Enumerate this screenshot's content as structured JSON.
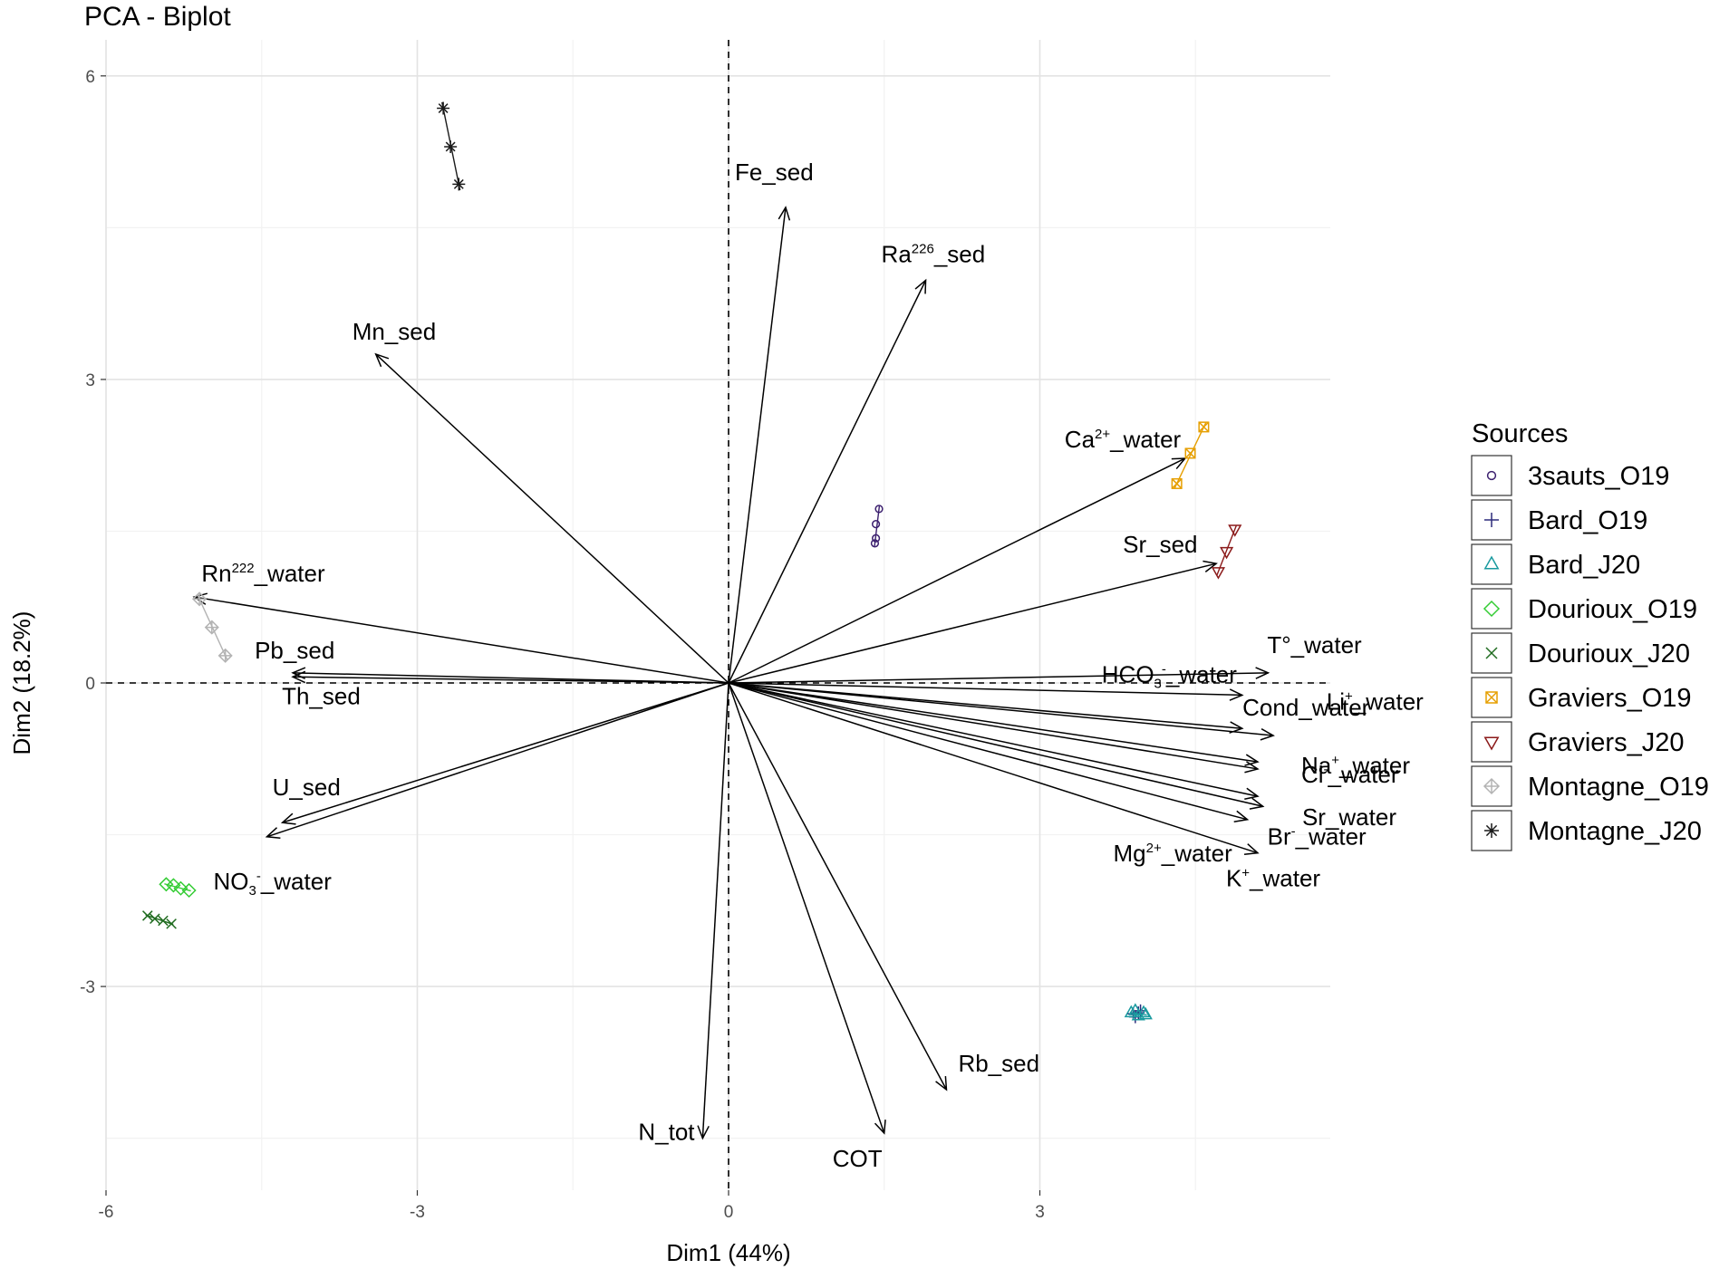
{
  "chart_data": {
    "type": "scatter",
    "title": "PCA - Biplot",
    "xlabel": "Dim1 (44%)",
    "ylabel": "Dim2 (18.2%)",
    "xlim": [
      -6.2,
      5.8
    ],
    "ylim": [
      -4.6,
      6.2
    ],
    "x_ticks": [
      -6,
      -3,
      0,
      3
    ],
    "y_ticks": [
      6,
      3,
      0,
      -3
    ],
    "x_tick_labels": [
      "-6",
      "-3",
      "0",
      "3"
    ],
    "y_tick_labels": [
      "6",
      "3",
      "0",
      "-3"
    ],
    "grid": true,
    "legend_title": "Sources",
    "legend_position": "right",
    "variables": [
      {
        "name": "Fe_sed",
        "x": 0.55,
        "y": 4.7,
        "label_parts": [
          {
            "t": "Fe_sed"
          }
        ]
      },
      {
        "name": "Ra226_sed",
        "x": 1.9,
        "y": 3.98,
        "label_parts": [
          {
            "t": "Ra"
          },
          {
            "t": "226",
            "sup": true
          },
          {
            "t": "_sed"
          }
        ]
      },
      {
        "name": "Mn_sed",
        "x": -3.4,
        "y": 3.25,
        "label_parts": [
          {
            "t": "Mn_sed"
          }
        ]
      },
      {
        "name": "Ca2+_water",
        "x": 4.4,
        "y": 2.22,
        "label_parts": [
          {
            "t": "Ca"
          },
          {
            "t": "2+",
            "sup": true
          },
          {
            "t": "_water"
          }
        ]
      },
      {
        "name": "Sr_sed",
        "x": 4.7,
        "y": 1.18,
        "label_parts": [
          {
            "t": "Sr_sed"
          }
        ]
      },
      {
        "name": "Rn222_water",
        "x": -5.15,
        "y": 0.85,
        "label_parts": [
          {
            "t": "Rn"
          },
          {
            "t": "222",
            "sup": true
          },
          {
            "t": "_water"
          }
        ]
      },
      {
        "name": "Pb_sed",
        "x": -4.2,
        "y": 0.1,
        "label_parts": [
          {
            "t": "Pb_sed"
          }
        ]
      },
      {
        "name": "Th_sed",
        "x": -4.2,
        "y": 0.06,
        "label_parts": [
          {
            "t": "Th_sed"
          }
        ]
      },
      {
        "name": "T°_water",
        "x": 5.2,
        "y": 0.1,
        "label_parts": [
          {
            "t": "T°_water"
          }
        ]
      },
      {
        "name": "HCO3-_water",
        "x": 4.95,
        "y": -0.12,
        "label_parts": [
          {
            "t": "HCO"
          },
          {
            "t": "3",
            "sub": true
          },
          {
            "t": "-",
            "sup": true
          },
          {
            "t": "_water"
          }
        ]
      },
      {
        "name": "Li+_water",
        "x": 4.95,
        "y": -0.45,
        "label_parts": [
          {
            "t": "Li"
          },
          {
            "t": "+",
            "sup": true
          },
          {
            "t": "_water"
          }
        ]
      },
      {
        "name": "Cond_water",
        "x": 5.25,
        "y": -0.52,
        "label_parts": [
          {
            "t": "Cond_water"
          }
        ]
      },
      {
        "name": "Na+_water",
        "x": 5.1,
        "y": -0.78,
        "label_parts": [
          {
            "t": "Na"
          },
          {
            "t": "+",
            "sup": true
          },
          {
            "t": "_water"
          }
        ]
      },
      {
        "name": "Cl-_water",
        "x": 5.1,
        "y": -0.85,
        "label_parts": [
          {
            "t": "Cl"
          },
          {
            "t": "-",
            "sup": true
          },
          {
            "t": "_water"
          }
        ]
      },
      {
        "name": "Sr_water",
        "x": 5.1,
        "y": -1.12,
        "label_parts": [
          {
            "t": "Sr_water"
          }
        ]
      },
      {
        "name": "Br_water",
        "x": 5.15,
        "y": -1.22,
        "label_parts": [
          {
            "t": "Br"
          },
          {
            "t": "-",
            "sup": true
          },
          {
            "t": "_water"
          }
        ]
      },
      {
        "name": "Mg2+_water",
        "x": 5.0,
        "y": -1.35,
        "label_parts": [
          {
            "t": "Mg"
          },
          {
            "t": "2+",
            "sup": true
          },
          {
            "t": "_water"
          }
        ]
      },
      {
        "name": "K+_water",
        "x": 5.1,
        "y": -1.68,
        "label_parts": [
          {
            "t": "K"
          },
          {
            "t": "+",
            "sup": true
          },
          {
            "t": "_water"
          }
        ]
      },
      {
        "name": "U_sed",
        "x": -4.3,
        "y": -1.38,
        "label_parts": [
          {
            "t": "U_sed"
          }
        ]
      },
      {
        "name": "NO3-_water",
        "x": -4.45,
        "y": -1.52,
        "label_parts": [
          {
            "t": "NO"
          },
          {
            "t": "3",
            "sub": true
          },
          {
            "t": "-",
            "sup": true
          },
          {
            "t": "_water"
          }
        ]
      },
      {
        "name": "Rb_sed",
        "x": 2.1,
        "y": -4.02,
        "label_parts": [
          {
            "t": "Rb_sed"
          }
        ]
      },
      {
        "name": "COT",
        "x": 1.5,
        "y": -4.45,
        "label_parts": [
          {
            "t": "COT"
          }
        ]
      },
      {
        "name": "N_tot",
        "x": -0.25,
        "y": -4.5,
        "label_parts": [
          {
            "t": "N_tot"
          }
        ]
      }
    ],
    "series": [
      {
        "name": "3sauts_O19",
        "color": "#3b1f6e",
        "shape": "circle",
        "points": [
          [
            1.45,
            1.72
          ],
          [
            1.42,
            1.57
          ],
          [
            1.42,
            1.43
          ],
          [
            1.41,
            1.38
          ]
        ]
      },
      {
        "name": "Bard_O19",
        "color": "#2d2c7c",
        "shape": "plus",
        "points": [
          [
            3.9,
            -3.27
          ],
          [
            3.95,
            -3.26
          ],
          [
            3.92,
            -3.3
          ],
          [
            3.97,
            -3.24
          ]
        ]
      },
      {
        "name": "Bard_J20",
        "color": "#1a9a9f",
        "shape": "triangle",
        "points": [
          [
            3.88,
            -3.26
          ],
          [
            3.95,
            -3.29
          ],
          [
            4.0,
            -3.26
          ],
          [
            3.92,
            -3.24
          ],
          [
            4.02,
            -3.28
          ]
        ]
      },
      {
        "name": "Dourioux_O19",
        "color": "#33cc33",
        "shape": "diamond",
        "points": [
          [
            -5.42,
            -1.99
          ],
          [
            -5.35,
            -2.0
          ],
          [
            -5.28,
            -2.03
          ],
          [
            -5.2,
            -2.05
          ]
        ]
      },
      {
        "name": "Dourioux_J20",
        "color": "#1f6b1f",
        "shape": "x",
        "points": [
          [
            -5.6,
            -2.3
          ],
          [
            -5.53,
            -2.33
          ],
          [
            -5.45,
            -2.35
          ],
          [
            -5.37,
            -2.38
          ]
        ]
      },
      {
        "name": "Graviers_O19",
        "color": "#e69f00",
        "shape": "square-x",
        "points": [
          [
            4.32,
            1.97
          ],
          [
            4.45,
            2.27
          ],
          [
            4.58,
            2.53
          ]
        ]
      },
      {
        "name": "Graviers_J20",
        "color": "#8b1a1a",
        "shape": "triangle-down",
        "points": [
          [
            4.88,
            1.52
          ],
          [
            4.8,
            1.3
          ],
          [
            4.72,
            1.1
          ]
        ]
      },
      {
        "name": "Montagne_O19",
        "color": "#b3b3b3",
        "shape": "diamond-plus",
        "points": [
          [
            -5.1,
            0.83
          ],
          [
            -4.98,
            0.55
          ],
          [
            -4.85,
            0.27
          ]
        ]
      },
      {
        "name": "Montagne_J20",
        "color": "#1a1a1a",
        "shape": "asterisk",
        "points": [
          [
            -2.75,
            5.68
          ],
          [
            -2.68,
            5.3
          ],
          [
            -2.6,
            4.93
          ]
        ]
      }
    ]
  }
}
